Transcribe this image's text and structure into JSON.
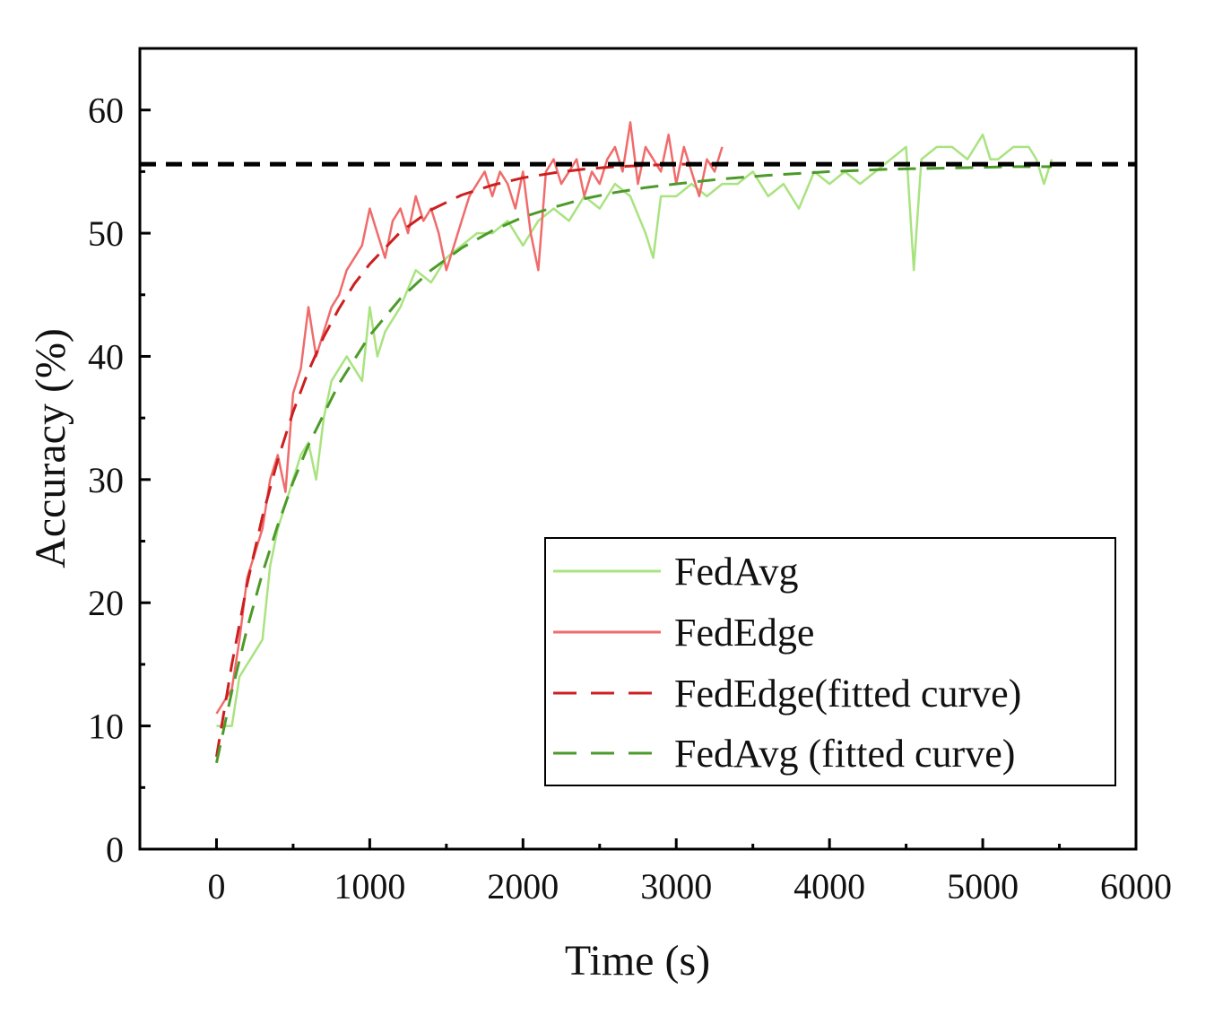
{
  "chart_data": {
    "type": "line",
    "xlabel": "Time (s)",
    "ylabel": "Accuracy (%)",
    "xlim": [
      -500,
      6000
    ],
    "ylim": [
      0,
      65
    ],
    "xticks": [
      0,
      1000,
      2000,
      3000,
      4000,
      5000,
      6000
    ],
    "yticks": [
      0,
      10,
      20,
      30,
      40,
      50,
      60
    ],
    "reference_line": {
      "y": 55.6,
      "style": "dashed",
      "color": "#000000"
    },
    "legend_position": "lower-right",
    "series": [
      {
        "name": "FedAvg",
        "style": "solid",
        "color": "#a9e37f",
        "x": [
          0,
          100,
          150,
          200,
          250,
          300,
          350,
          400,
          450,
          500,
          550,
          600,
          650,
          700,
          750,
          800,
          850,
          900,
          950,
          1000,
          1050,
          1100,
          1150,
          1200,
          1300,
          1400,
          1500,
          1600,
          1700,
          1800,
          1900,
          2000,
          2100,
          2200,
          2300,
          2400,
          2500,
          2600,
          2700,
          2800,
          2850,
          2900,
          3000,
          3100,
          3200,
          3300,
          3400,
          3500,
          3600,
          3700,
          3800,
          3900,
          4000,
          4100,
          4200,
          4300,
          4400,
          4500,
          4550,
          4600,
          4700,
          4800,
          4900,
          5000,
          5050,
          5100,
          5200,
          5300,
          5350,
          5400,
          5450
        ],
        "y": [
          10,
          10,
          14,
          15,
          16,
          17,
          23,
          26,
          28,
          30,
          32,
          33,
          30,
          35,
          38,
          39,
          40,
          39,
          38,
          44,
          40,
          42,
          43,
          44,
          47,
          46,
          48,
          49,
          50,
          50,
          51,
          49,
          51,
          52,
          51,
          53,
          52,
          54,
          53,
          50,
          48,
          53,
          53,
          54,
          53,
          54,
          54,
          55,
          53,
          54,
          52,
          55,
          54,
          55,
          54,
          55,
          56,
          57,
          47,
          56,
          57,
          57,
          56,
          58,
          56,
          56,
          57,
          57,
          56,
          54,
          56
        ]
      },
      {
        "name": "FedEdge",
        "style": "solid",
        "color": "#f06b6b",
        "x": [
          0,
          50,
          100,
          150,
          200,
          250,
          300,
          350,
          400,
          450,
          500,
          550,
          600,
          650,
          700,
          750,
          800,
          850,
          900,
          950,
          1000,
          1050,
          1100,
          1150,
          1200,
          1250,
          1300,
          1350,
          1400,
          1450,
          1500,
          1550,
          1600,
          1650,
          1700,
          1750,
          1800,
          1850,
          1900,
          1950,
          2000,
          2050,
          2100,
          2150,
          2200,
          2250,
          2300,
          2350,
          2400,
          2450,
          2500,
          2550,
          2600,
          2650,
          2700,
          2750,
          2800,
          2850,
          2900,
          2950,
          3000,
          3050,
          3100,
          3150,
          3200,
          3250,
          3300
        ],
        "y": [
          11,
          12,
          13,
          17,
          22,
          24,
          26,
          30,
          32,
          29,
          37,
          39,
          44,
          40,
          42,
          44,
          45,
          47,
          48,
          49,
          52,
          50,
          48,
          51,
          52,
          50,
          53,
          51,
          52,
          50,
          47,
          49,
          51,
          53,
          54,
          55,
          53,
          55,
          54,
          52,
          55,
          50,
          47,
          55,
          56,
          54,
          55,
          56,
          53,
          55,
          54,
          56,
          57,
          55,
          59,
          54,
          57,
          56,
          55,
          58,
          54,
          57,
          55,
          53,
          56,
          55,
          57
        ]
      },
      {
        "name": "FedEdge(fitted curve)",
        "style": "dashed",
        "color": "#cc1f1f",
        "x": [
          0,
          100,
          200,
          300,
          400,
          500,
          600,
          700,
          800,
          900,
          1000,
          1200,
          1400,
          1600,
          1800,
          2000,
          2200,
          2400,
          2600,
          2800,
          3000,
          3200,
          3350
        ],
        "y": [
          7.5,
          15,
          21.5,
          27,
          31.6,
          35.5,
          38.8,
          41.6,
          43.9,
          45.9,
          47.5,
          50.1,
          51.9,
          53.1,
          53.9,
          54.5,
          54.9,
          55.2,
          55.4,
          55.5,
          55.6,
          55.6,
          55.7
        ]
      },
      {
        "name": "FedAvg (fitted curve)",
        "style": "dashed",
        "color": "#4c9a2a",
        "x": [
          0,
          100,
          200,
          300,
          400,
          500,
          600,
          800,
          1000,
          1200,
          1400,
          1600,
          1800,
          2000,
          2200,
          2400,
          2600,
          2800,
          3000,
          3300,
          3600,
          4000,
          4400,
          4800,
          5200,
          5450
        ],
        "y": [
          7,
          12.8,
          17.9,
          22.4,
          26.3,
          29.8,
          32.8,
          37.8,
          41.7,
          44.7,
          47,
          48.8,
          50.2,
          51.3,
          52.1,
          52.8,
          53.3,
          53.7,
          54,
          54.4,
          54.7,
          55,
          55.2,
          55.3,
          55.4,
          55.4
        ]
      }
    ]
  },
  "legend": {
    "items": [
      {
        "label": "FedAvg",
        "color": "#a9e37f",
        "dash": false
      },
      {
        "label": "FedEdge",
        "color": "#f06b6b",
        "dash": false
      },
      {
        "label": "FedEdge(fitted curve)",
        "color": "#cc1f1f",
        "dash": true
      },
      {
        "label": "FedAvg (fitted curve)",
        "color": "#4c9a2a",
        "dash": true
      }
    ]
  }
}
